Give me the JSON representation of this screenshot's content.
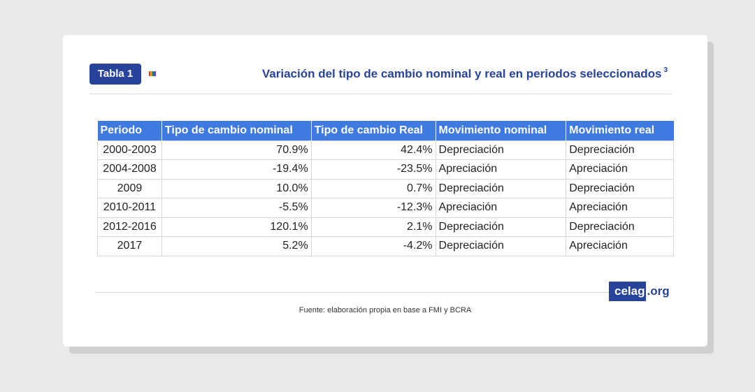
{
  "badge": {
    "label": "Tabla 1"
  },
  "flag": {
    "colors": [
      "#e4342b",
      "#f5a623",
      "#2a9d4a",
      "#2f5bd3",
      "#7b3fb0"
    ]
  },
  "title": {
    "text": "Variación del tipo de cambio nominal y real en periodos seleccionados",
    "footnote": "3"
  },
  "colors": {
    "brand": "#27449a",
    "header": "#3e7ae0"
  },
  "chart_data": {
    "type": "table",
    "columns": [
      "Periodo",
      "Tipo de cambio nominal",
      "Tipo de cambio Real",
      "Movimiento nominal",
      "Movimiento real"
    ],
    "rows": [
      [
        "2000-2003",
        "70.9%",
        "42.4%",
        "Depreciación",
        "Depreciación"
      ],
      [
        "2004-2008",
        "-19.4%",
        "-23.5%",
        "Apreciación",
        "Apreciación"
      ],
      [
        "2009",
        "10.0%",
        "0.7%",
        "Depreciación",
        "Depreciación"
      ],
      [
        "2010-2011",
        "-5.5%",
        "-12.3%",
        "Apreciación",
        "Apreciación"
      ],
      [
        "2012-2016",
        "120.1%",
        "2.1%",
        "Depreciación",
        "Depreciación"
      ],
      [
        "2017",
        "5.2%",
        "-4.2%",
        "Depreciación",
        "Apreciación"
      ]
    ]
  },
  "logo": {
    "name": "celag",
    "tld": ".org"
  },
  "caption": "Fuente: elaboración propia en base a FMI y BCRA"
}
